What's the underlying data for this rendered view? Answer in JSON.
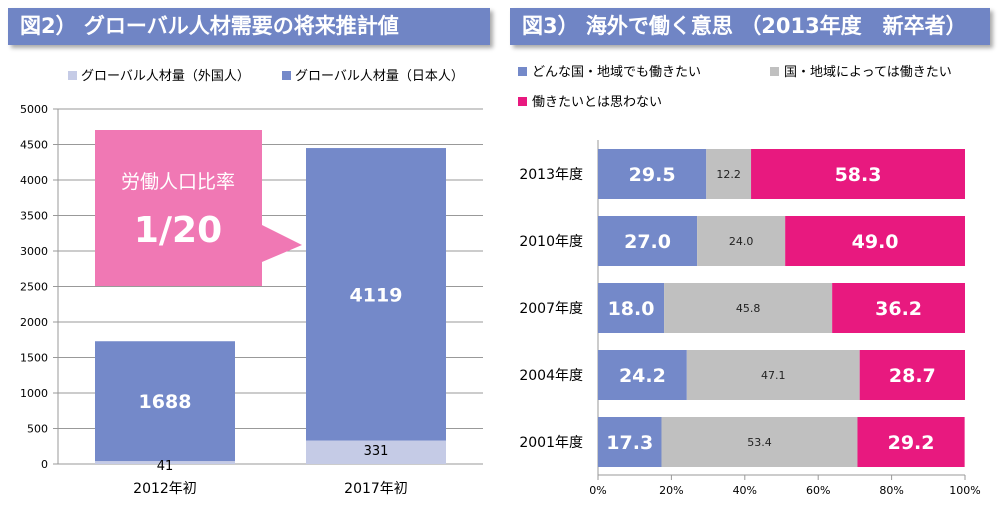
{
  "colors": {
    "band": "#7085c5",
    "japanese": "#7489c9",
    "foreign": "#c5cbe6",
    "anywhere": "#7489c9",
    "depends": "#c0c0c0",
    "no": "#e8197f",
    "callout": "#f078b4"
  },
  "chart_data": [
    {
      "type": "bar",
      "stacked": true,
      "title": "図2） グローバル人材需要の将来推計値",
      "categories": [
        "2012年初",
        "2017年初"
      ],
      "series": [
        {
          "name": "グローバル人材量（外国人）",
          "values": [
            41,
            331
          ]
        },
        {
          "name": "グローバル人材量（日本人）",
          "values": [
            1688,
            4119
          ]
        }
      ],
      "ylim": [
        0,
        5000
      ],
      "yticks": [
        0,
        500,
        1000,
        1500,
        2000,
        2500,
        3000,
        3500,
        4000,
        4500,
        5000
      ],
      "legend": "top",
      "grid": true,
      "annotation": {
        "label": "労働人口比率",
        "value": "1/20"
      }
    },
    {
      "type": "bar",
      "orientation": "horizontal",
      "stacked": true,
      "title": "図3） 海外で働く意思 （2013年度　新卒者）",
      "categories": [
        "2013年度",
        "2010年度",
        "2007年度",
        "2004年度",
        "2001年度"
      ],
      "series": [
        {
          "name": "どんな国・地域でも働きたい",
          "values": [
            29.5,
            27.0,
            18.0,
            24.2,
            17.3
          ]
        },
        {
          "name": "国・地域によっては働きたい",
          "values": [
            12.2,
            24.0,
            45.8,
            47.1,
            53.4
          ]
        },
        {
          "name": "働きたいとは思わない",
          "values": [
            58.3,
            49.0,
            36.2,
            28.7,
            29.2
          ]
        }
      ],
      "xlim": [
        0,
        100
      ],
      "xticks": [
        "0%",
        "20%",
        "40%",
        "60%",
        "80%",
        "100%"
      ],
      "legend": "top"
    }
  ]
}
